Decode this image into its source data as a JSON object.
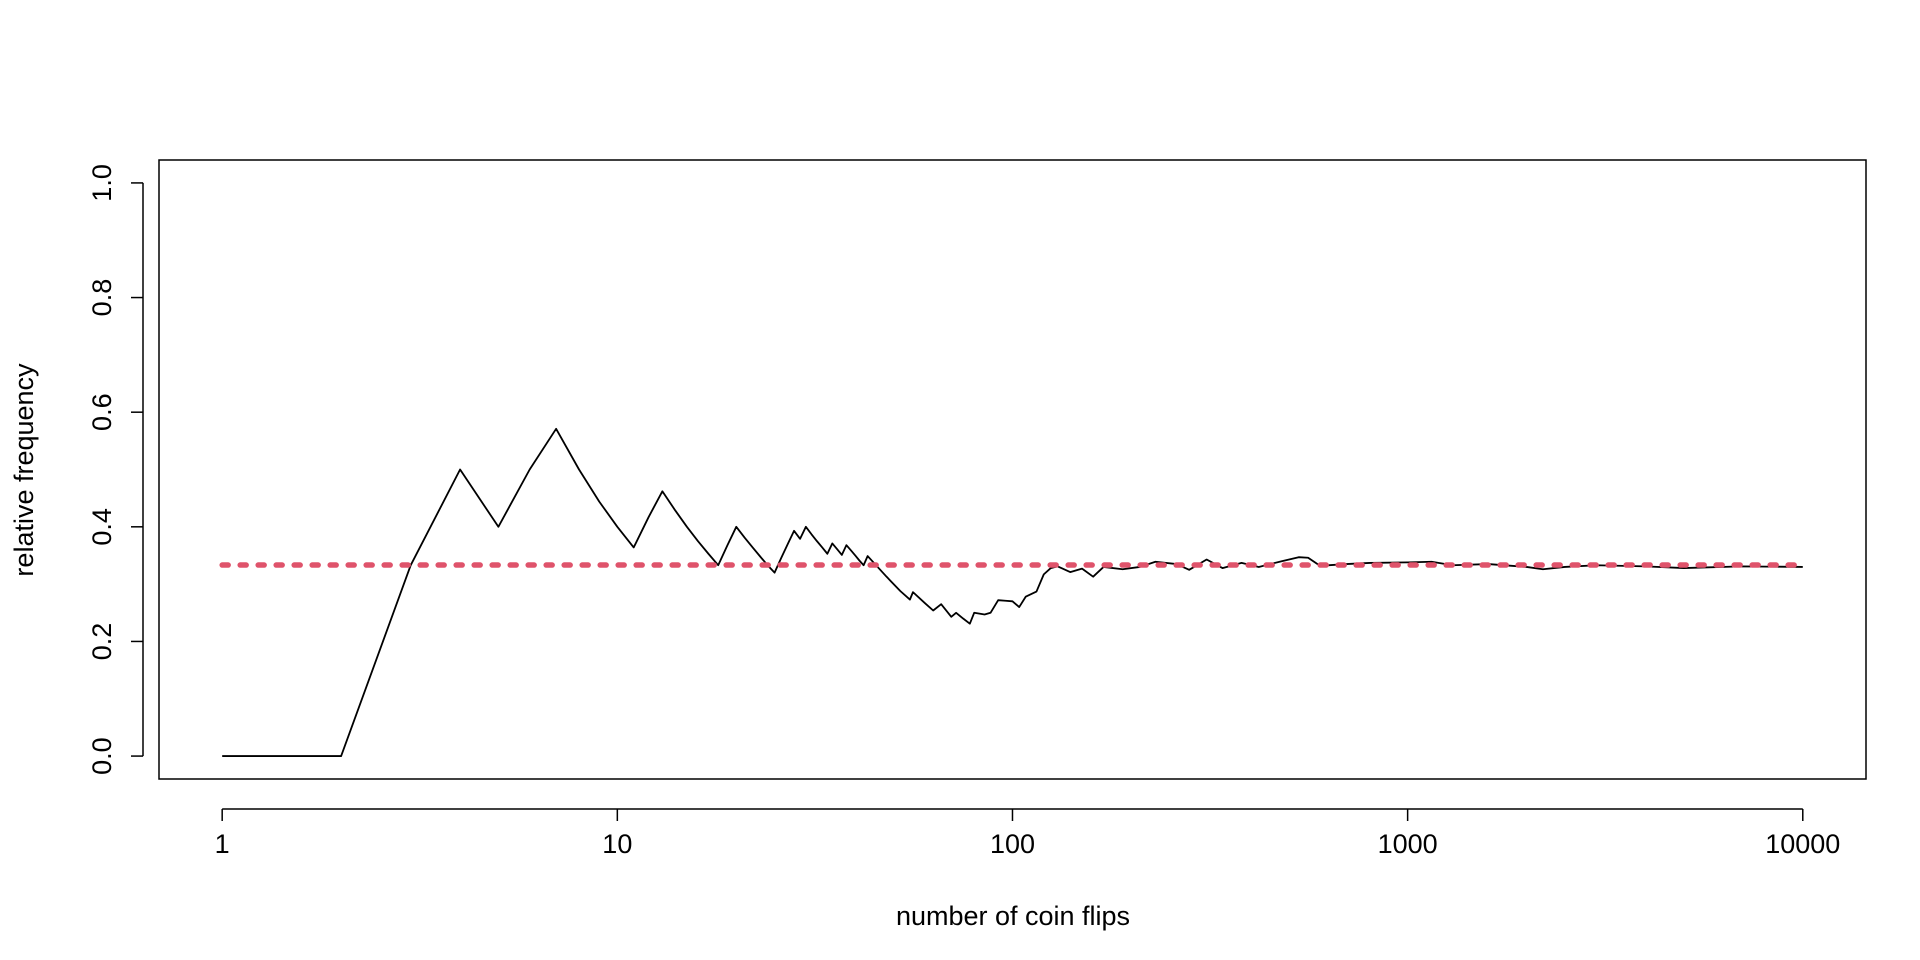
{
  "chart_data": {
    "type": "line",
    "xlabel": "number of coin flips",
    "ylabel": "relative frequency",
    "xscale": "log",
    "x": [
      1,
      2,
      3,
      4,
      5,
      6,
      7,
      8,
      9,
      10,
      11,
      12,
      13,
      14,
      15,
      16,
      17,
      18,
      19,
      20,
      21,
      22,
      23,
      24,
      25,
      26,
      27,
      28,
      29,
      30,
      31,
      32,
      33,
      34,
      35,
      36,
      37,
      38,
      39,
      40,
      41,
      42,
      43,
      48,
      52,
      55,
      56,
      60,
      63,
      66,
      70,
      72,
      75,
      78,
      80,
      85,
      88,
      92,
      96,
      100,
      104,
      108,
      115,
      120,
      125,
      130,
      140,
      150,
      160,
      170,
      190,
      210,
      230,
      260,
      280,
      310,
      340,
      380,
      420,
      480,
      530,
      560,
      600,
      700,
      800,
      1000,
      1150,
      1300,
      1600,
      2000,
      2200,
      2500,
      3000,
      4000,
      5000,
      7000,
      10000
    ],
    "values": [
      0,
      0,
      0.333,
      0.5,
      0.4,
      0.5,
      0.571,
      0.5,
      0.444,
      0.4,
      0.364,
      0.417,
      0.462,
      0.429,
      0.4,
      0.375,
      0.353,
      0.333,
      0.368,
      0.4,
      0.381,
      0.364,
      0.348,
      0.333,
      0.32,
      0.346,
      0.37,
      0.393,
      0.379,
      0.4,
      0.387,
      0.375,
      0.364,
      0.353,
      0.371,
      0.361,
      0.351,
      0.368,
      0.359,
      0.35,
      0.341,
      0.333,
      0.349,
      0.313,
      0.288,
      0.273,
      0.286,
      0.267,
      0.254,
      0.265,
      0.243,
      0.25,
      0.24,
      0.231,
      0.25,
      0.247,
      0.25,
      0.272,
      0.271,
      0.27,
      0.26,
      0.278,
      0.287,
      0.317,
      0.328,
      0.331,
      0.321,
      0.327,
      0.313,
      0.33,
      0.326,
      0.33,
      0.339,
      0.335,
      0.325,
      0.343,
      0.328,
      0.337,
      0.33,
      0.34,
      0.347,
      0.346,
      0.332,
      0.335,
      0.337,
      0.338,
      0.339,
      0.333,
      0.335,
      0.33,
      0.326,
      0.33,
      0.333,
      0.331,
      0.328,
      0.331,
      0.33
    ],
    "color": "#000000",
    "hline": 0.3333,
    "hline_color": "#df536b",
    "xlim": [
      0.692,
      14454
    ],
    "ylim": [
      -0.04,
      1.04
    ],
    "xticks": [
      1,
      10,
      100,
      1000,
      10000
    ],
    "yticks": [
      {
        "value": 0,
        "label": "0.0"
      },
      0.2,
      0.4,
      0.6,
      0.8,
      {
        "value": 1,
        "label": "1.0"
      }
    ]
  }
}
